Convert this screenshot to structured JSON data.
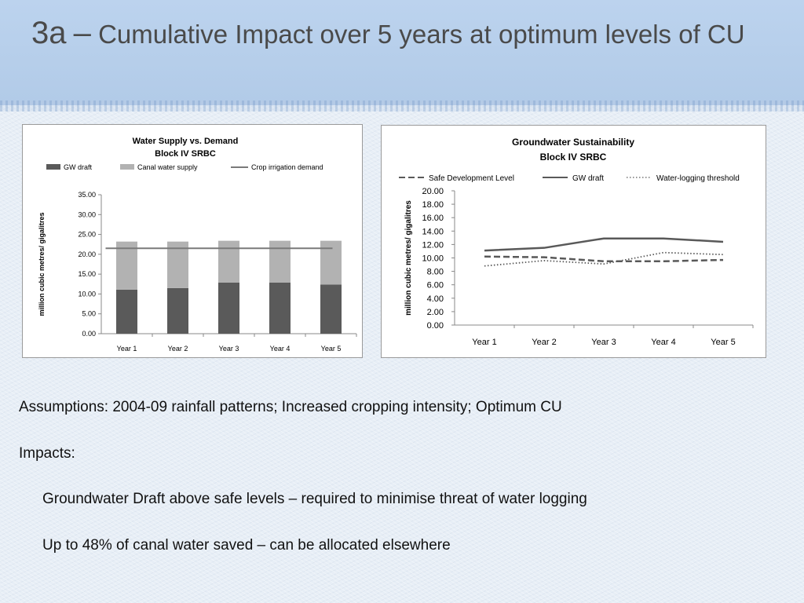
{
  "slide": {
    "title_num": "3a",
    "title_dash": "–",
    "title_rest": "Cumulative Impact over 5 years at optimum levels of CU"
  },
  "text": {
    "assumptions": "Assumptions: 2004-09 rainfall patterns; Increased cropping intensity; Optimum CU",
    "impacts_label": "Impacts:",
    "impact1": "Groundwater Draft above safe levels – required to minimise threat of water logging",
    "impact2": "Up to 48% of canal water saved – can be allocated elsewhere"
  },
  "chart_data": [
    {
      "type": "bar",
      "stacked": true,
      "title": [
        "Water Supply vs. Demand",
        "Block IV SRBC"
      ],
      "ylabel": "million cubic metres/ gigalitres",
      "categories": [
        "Year 1",
        "Year 2",
        "Year 3",
        "Year 4",
        "Year 5"
      ],
      "ylim": [
        0,
        35
      ],
      "yticks": [
        "0.00",
        "5.00",
        "10.00",
        "15.00",
        "20.00",
        "25.00",
        "30.00",
        "35.00"
      ],
      "legend_position": "top",
      "series": [
        {
          "name": "GW draft",
          "kind": "bar",
          "color": "#5a5a5a",
          "values": [
            11.1,
            11.5,
            12.9,
            12.9,
            12.4
          ]
        },
        {
          "name": "Canal water supply",
          "kind": "bar",
          "color": "#b2b2b2",
          "values": [
            12.1,
            11.7,
            10.5,
            10.5,
            11.0
          ]
        },
        {
          "name": "Crop irrigation demand",
          "kind": "line",
          "color": "#7a7a7a",
          "values": [
            21.5,
            21.5,
            21.5,
            21.5,
            21.5
          ]
        }
      ]
    },
    {
      "type": "line",
      "title": [
        "Groundwater Sustainability",
        "Block IV SRBC"
      ],
      "ylabel": "million cubic metres/ gigalitres",
      "categories": [
        "Year 1",
        "Year 2",
        "Year 3",
        "Year 4",
        "Year 5"
      ],
      "ylim": [
        0,
        20
      ],
      "yticks": [
        "0.00",
        "2.00",
        "4.00",
        "6.00",
        "8.00",
        "10.00",
        "12.00",
        "14.00",
        "16.00",
        "18.00",
        "20.00"
      ],
      "legend_position": "top",
      "series": [
        {
          "name": "Safe Development Level",
          "style": "dashed",
          "color": "#595959",
          "values": [
            10.2,
            10.1,
            9.5,
            9.5,
            9.7
          ]
        },
        {
          "name": "GW draft",
          "style": "solid",
          "color": "#595959",
          "values": [
            11.1,
            11.5,
            12.9,
            12.9,
            12.4
          ]
        },
        {
          "name": "Water-logging threshold",
          "style": "dotted",
          "color": "#595959",
          "values": [
            8.8,
            9.6,
            9.1,
            10.8,
            10.5
          ]
        }
      ]
    }
  ]
}
